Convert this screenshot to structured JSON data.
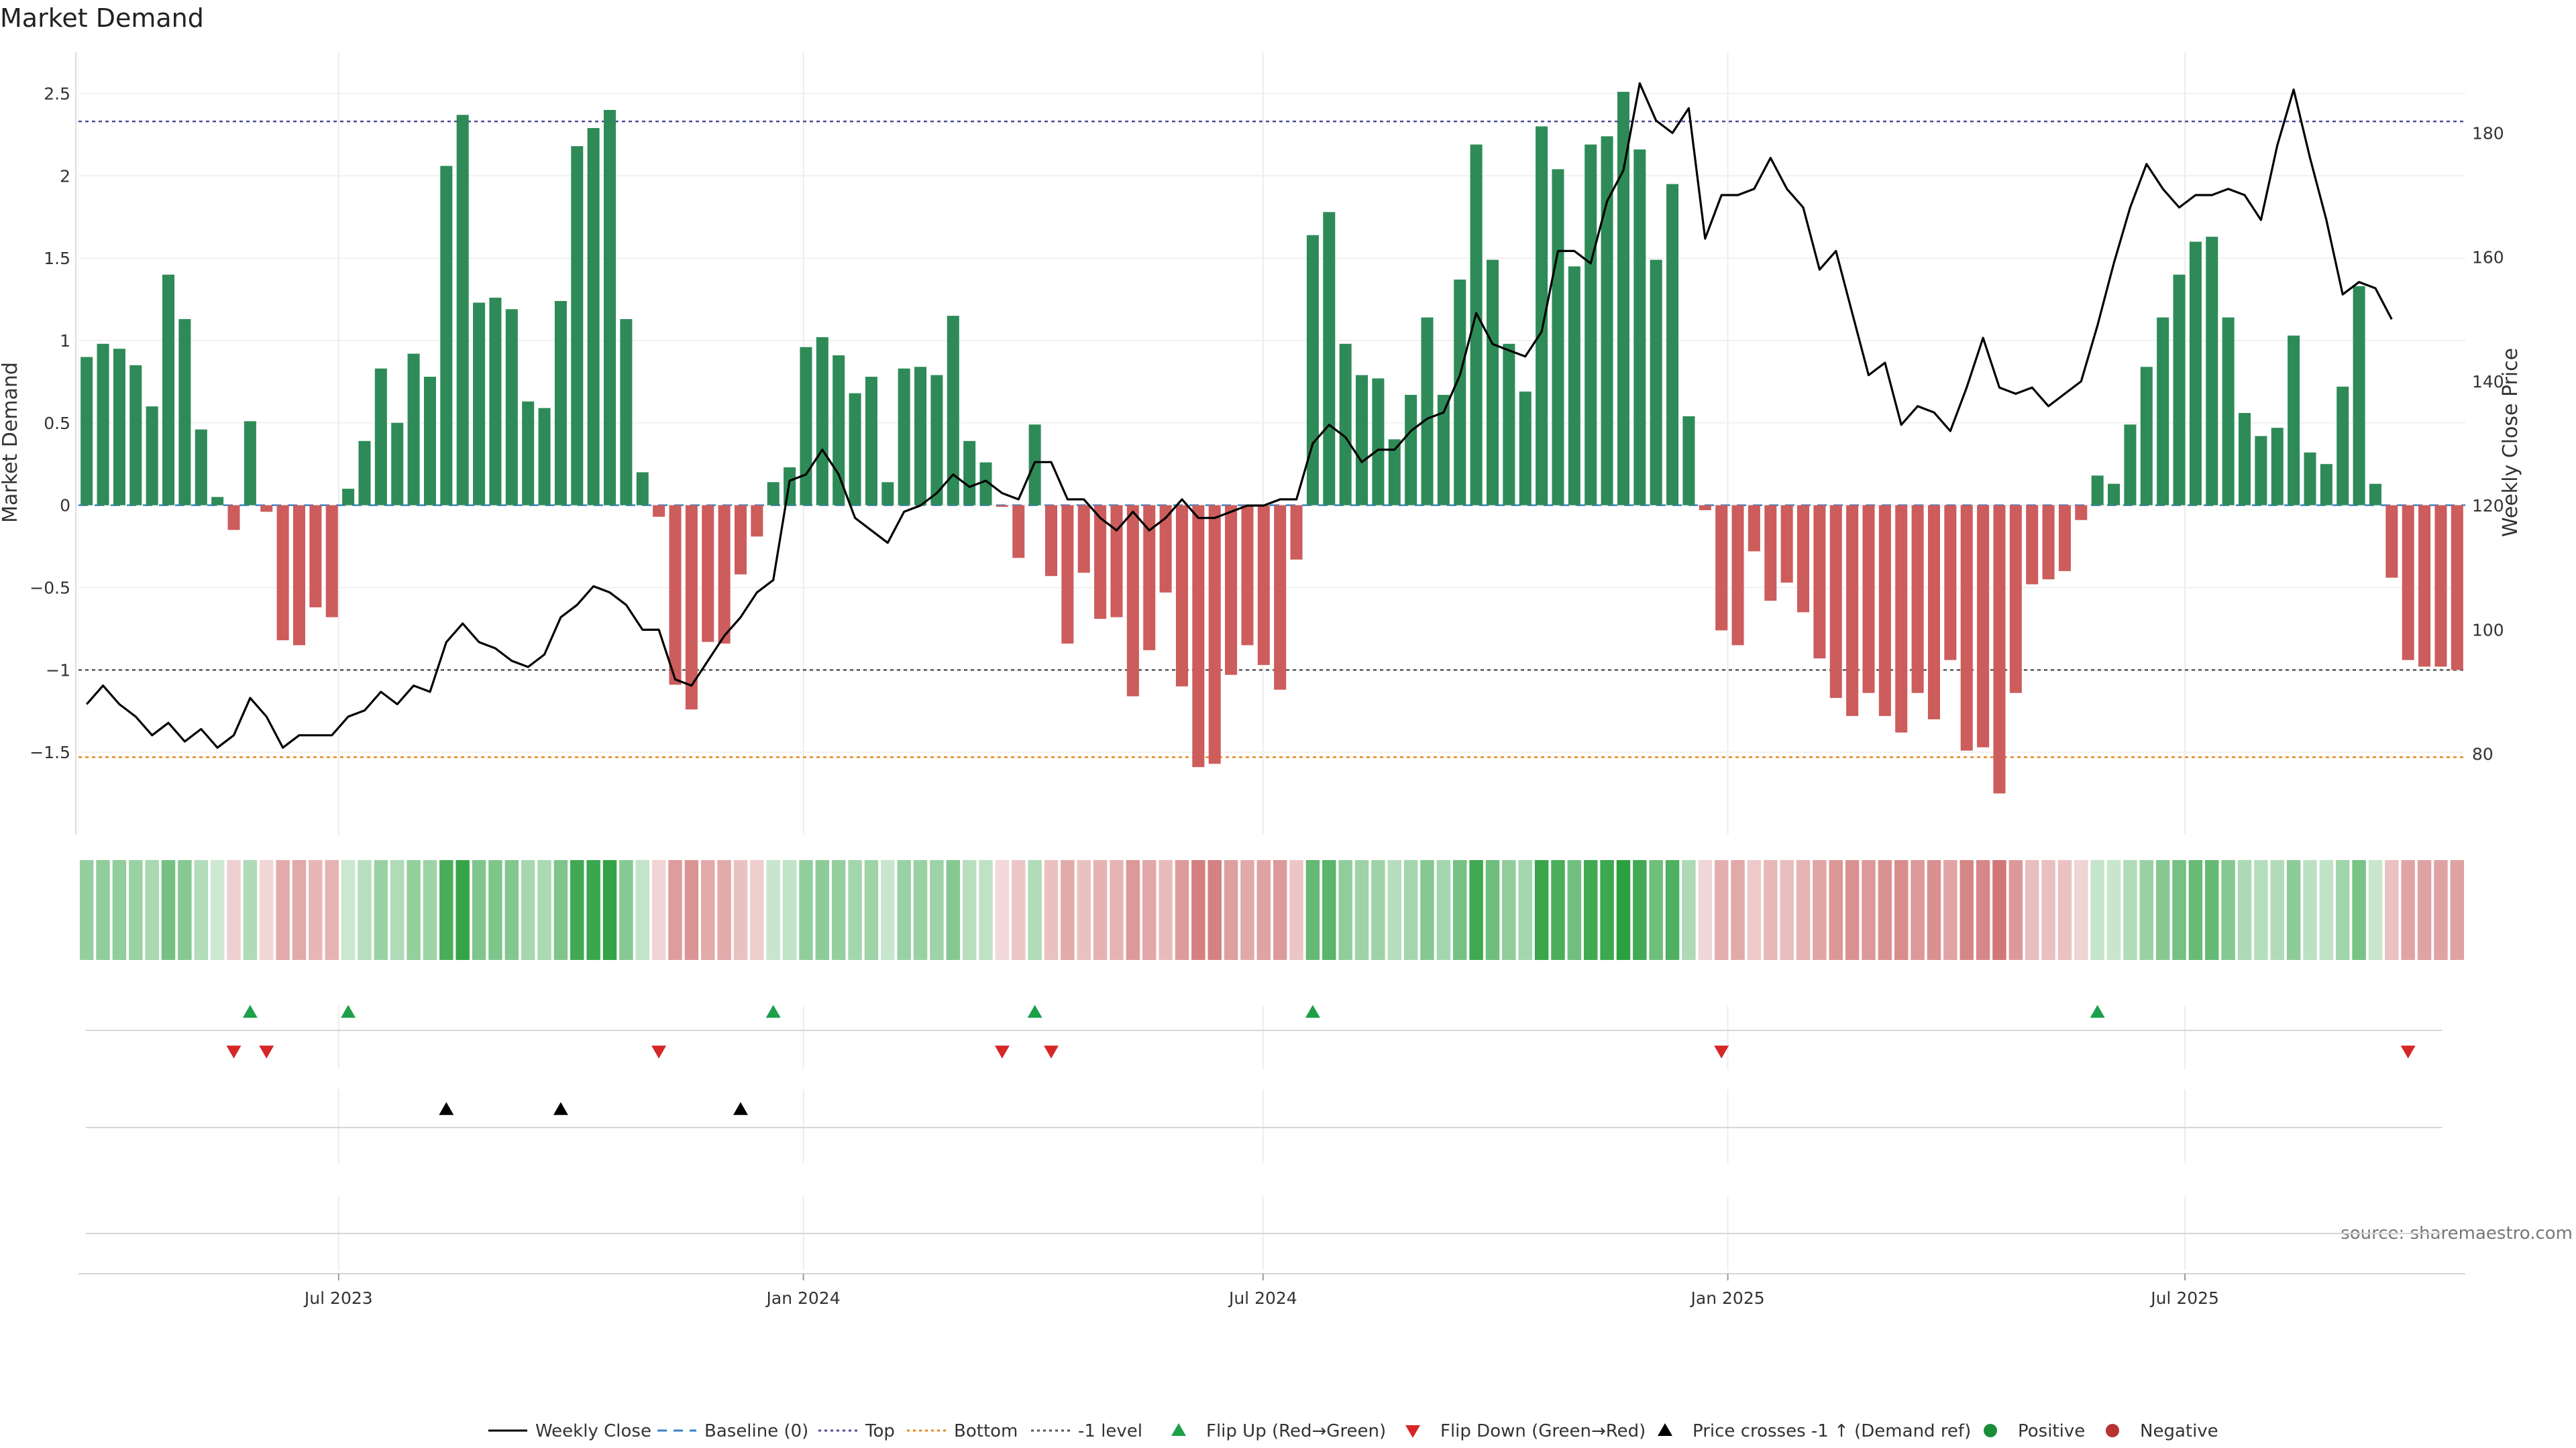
{
  "chart_data": {
    "title": "Market Demand",
    "type": "bar",
    "y_label_left": "Market Demand",
    "y_label_right": "Weekly Close Price",
    "ylim_left": [
      -2.0,
      2.75
    ],
    "ylim_right": [
      67,
      193
    ],
    "yticks_left": [
      2.5,
      2,
      1.5,
      1,
      0.5,
      0,
      -0.5,
      -1,
      -1.5
    ],
    "yticks_left_labels": [
      "2.5",
      "2",
      "1.5",
      "1",
      "0.5",
      "0",
      "−0.5",
      "−1",
      "−1.5"
    ],
    "yticks_right": [
      180,
      160,
      140,
      120,
      100,
      80
    ],
    "x_start": "2023-03-20",
    "x_end": "2025-10-20",
    "x_ticks": [
      {
        "date": "2023-07-01",
        "label": "Jul 2023"
      },
      {
        "date": "2024-01-01",
        "label": "Jan 2024"
      },
      {
        "date": "2024-07-01",
        "label": "Jul 2024"
      },
      {
        "date": "2025-01-01",
        "label": "Jan 2025"
      },
      {
        "date": "2025-07-01",
        "label": "Jul 2025"
      }
    ],
    "reference_lines": {
      "top": 2.33,
      "bottom": -1.53,
      "minus_one": -1,
      "baseline": 0
    },
    "demand": [
      0.9,
      0.98,
      0.95,
      0.85,
      0.6,
      1.4,
      1.13,
      0.46,
      0.05,
      -0.15,
      0.51,
      -0.04,
      -0.82,
      -0.85,
      -0.62,
      -0.68,
      0.1,
      0.39,
      0.83,
      0.5,
      0.92,
      0.78,
      2.06,
      2.37,
      1.23,
      1.26,
      1.19,
      0.63,
      0.59,
      1.24,
      2.18,
      2.29,
      2.4,
      1.13,
      0.2,
      -0.07,
      -1.09,
      -1.24,
      -0.83,
      -0.84,
      -0.42,
      -0.19,
      0.14,
      0.23,
      0.96,
      1.02,
      0.91,
      0.68,
      0.78,
      0.14,
      0.83,
      0.84,
      0.79,
      1.15,
      0.39,
      0.26,
      -0.01,
      -0.32,
      0.49,
      -0.43,
      -0.84,
      -0.41,
      -0.69,
      -0.68,
      -1.16,
      -0.88,
      -0.53,
      -1.1,
      -1.59,
      -1.57,
      -1.03,
      -0.85,
      -0.97,
      -1.12,
      -0.33,
      1.64,
      1.78,
      0.98,
      0.79,
      0.77,
      0.4,
      0.67,
      1.14,
      0.67,
      1.37,
      2.19,
      1.49,
      0.98,
      0.69,
      2.3,
      2.04,
      1.45,
      2.19,
      2.24,
      2.51,
      2.16,
      1.49,
      1.95,
      0.54,
      -0.03,
      -0.76,
      -0.85,
      -0.28,
      -0.58,
      -0.47,
      -0.65,
      -0.93,
      -1.17,
      -1.28,
      -1.14,
      -1.28,
      -1.38,
      -1.14,
      -1.3,
      -0.94,
      -1.49,
      -1.47,
      -1.75,
      -1.14,
      -0.48,
      -0.45,
      -0.4,
      -0.09,
      0.18,
      0.13,
      0.49,
      0.84,
      1.14,
      1.4,
      1.6,
      1.63,
      1.14,
      0.56,
      0.42,
      0.47,
      1.03,
      0.32,
      0.25,
      0.72,
      1.33,
      0.13,
      -0.44,
      -0.94,
      -0.98,
      -0.98,
      -1.0
    ],
    "weekly_close": [
      88,
      91,
      88,
      86,
      83,
      85,
      82,
      84,
      81,
      83,
      89,
      86,
      81,
      83,
      83,
      83,
      86,
      87,
      90,
      88,
      91,
      90,
      98,
      101,
      98,
      97,
      95,
      94,
      96,
      102,
      104,
      107,
      106,
      104,
      100,
      100,
      92,
      91,
      95,
      99,
      102,
      106,
      108,
      124,
      125,
      129,
      125,
      118,
      116,
      114,
      119,
      120,
      122,
      125,
      123,
      124,
      122,
      121,
      127,
      127,
      121,
      121,
      118,
      116,
      119,
      116,
      118,
      121,
      118,
      118,
      119,
      120,
      120,
      121,
      121,
      130,
      133,
      131,
      127,
      129,
      129,
      132,
      134,
      135,
      141,
      151,
      146,
      145,
      144,
      148,
      161,
      161,
      159,
      169,
      174,
      188,
      182,
      180,
      184,
      163,
      170,
      170,
      171,
      176,
      171,
      168,
      158,
      161,
      151,
      141,
      143,
      133,
      136,
      135,
      132,
      139,
      147,
      139,
      138,
      139,
      136,
      138,
      140,
      149,
      159,
      168,
      175,
      171,
      168,
      170,
      170,
      171,
      170,
      166,
      178,
      187,
      176,
      166,
      154,
      156,
      155,
      150
    ],
    "flip_up_weeks": [
      10,
      16,
      42,
      58,
      75,
      123
    ],
    "flip_down_weeks": [
      9,
      11,
      35,
      56,
      59,
      100,
      142
    ],
    "price_cross_weeks": [
      22,
      29,
      40
    ],
    "legend": [
      {
        "label": "Weekly Close",
        "kind": "line",
        "color": "#000000",
        "dash": ""
      },
      {
        "label": "Baseline (0)",
        "kind": "line",
        "color": "#3b82c4",
        "dash": "14 10"
      },
      {
        "label": "Top",
        "kind": "line",
        "color": "#4b4b9a",
        "dash": "4 5"
      },
      {
        "label": "Bottom",
        "kind": "line",
        "color": "#e8871e",
        "dash": "4 5"
      },
      {
        "label": "-1 level",
        "kind": "line",
        "color": "#555555",
        "dash": "4 5"
      },
      {
        "label": "Flip Up (Red→Green)",
        "kind": "up",
        "color": "#1ea04a"
      },
      {
        "label": "Flip Down (Green→Red)",
        "kind": "down",
        "color": "#d62728"
      },
      {
        "label": "Price crosses -1 ↑ (Demand ref)",
        "kind": "up",
        "color": "#000000"
      },
      {
        "label": "Positive",
        "kind": "dot",
        "color": "#1a8c3a"
      },
      {
        "label": "Negative",
        "kind": "dot",
        "color": "#b83232"
      }
    ],
    "colors": {
      "positive_bar": "#2e8b57",
      "negative_bar": "#cd5c5c",
      "flip_up": "#1ea04a",
      "flip_down": "#d62728",
      "price_line": "#000000"
    },
    "grid": true,
    "legend_position": "bottom"
  },
  "source_note": "source: sharemaestro.com"
}
